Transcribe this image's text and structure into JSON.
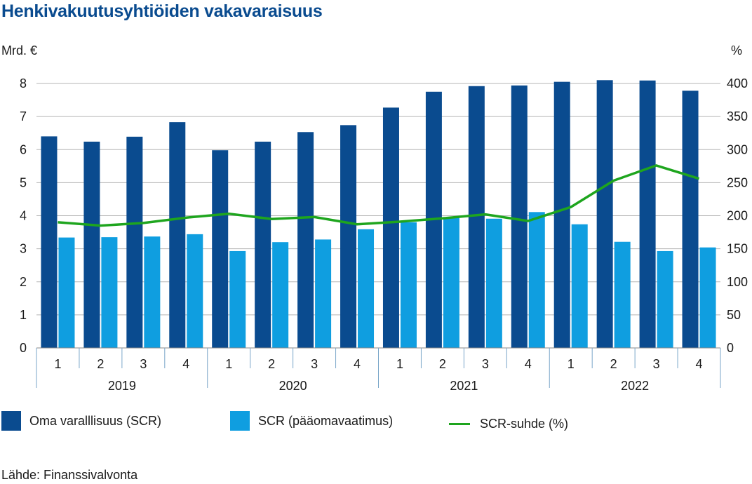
{
  "chart_data": {
    "type": "bar",
    "title": "Henkivakuutusyhtiöiden vakavaraisuus",
    "y_left_label": "Mrd. €",
    "y_right_label": "%",
    "ylim_left": [
      0,
      8
    ],
    "yticks_left": [
      0,
      1,
      2,
      3,
      4,
      5,
      6,
      7,
      8
    ],
    "ylim_right": [
      0,
      400
    ],
    "yticks_right": [
      0,
      50,
      100,
      150,
      200,
      250,
      300,
      350,
      400
    ],
    "grid": "horizontal",
    "legend_position": "bottom",
    "groups": [
      {
        "label": "2019",
        "categories": [
          "1",
          "2",
          "3",
          "4"
        ]
      },
      {
        "label": "2020",
        "categories": [
          "1",
          "2",
          "3",
          "4"
        ]
      },
      {
        "label": "2021",
        "categories": [
          "1",
          "2",
          "3",
          "4"
        ]
      },
      {
        "label": "2022",
        "categories": [
          "1",
          "2",
          "3",
          "4"
        ]
      }
    ],
    "series": [
      {
        "name": "Oma varalllisuus (SCR)",
        "type": "bar",
        "axis": "left",
        "color": "#0a4b8f",
        "values": [
          6.4,
          6.24,
          6.39,
          6.83,
          5.98,
          6.24,
          6.53,
          6.74,
          7.27,
          7.75,
          7.92,
          7.94,
          8.05,
          8.1,
          8.09,
          7.78
        ]
      },
      {
        "name": "SCR (pääomavaatimus)",
        "type": "bar",
        "axis": "left",
        "color": "#0f9ee0",
        "values": [
          3.34,
          3.35,
          3.37,
          3.44,
          2.93,
          3.2,
          3.28,
          3.59,
          3.8,
          3.96,
          3.91,
          4.11,
          3.74,
          3.21,
          2.93,
          3.04
        ]
      },
      {
        "name": "SCR-suhde (%)",
        "type": "line",
        "axis": "right",
        "color": "#1ea51e",
        "values": [
          190,
          185,
          189,
          197,
          203,
          195,
          198,
          187,
          191,
          196,
          202,
          192,
          213,
          253,
          276,
          256
        ]
      }
    ]
  },
  "source": "Lähde: Finanssivalvonta"
}
